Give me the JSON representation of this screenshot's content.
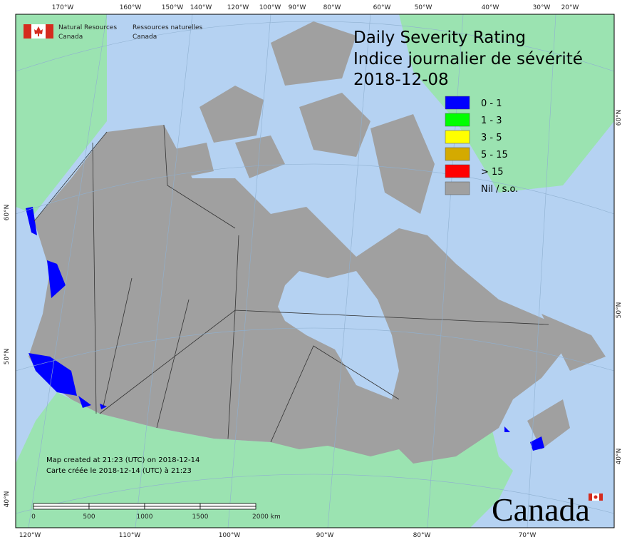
{
  "header": {
    "title": "Daily Severity Rating",
    "subtitle": "Indice journalier de sévérité",
    "date": "2018-12-08"
  },
  "logo": {
    "en1": "Natural Resources",
    "en2": "Canada",
    "fr1": "Ressources naturelles",
    "fr2": "Canada"
  },
  "legend": [
    {
      "label": "0 - 1",
      "color": "#0000ff"
    },
    {
      "label": "1 - 3",
      "color": "#00ff00"
    },
    {
      "label": "3 - 5",
      "color": "#ffff00"
    },
    {
      "label": "5 - 15",
      "color": "#d4aa00"
    },
    {
      "label": "> 15",
      "color": "#ff0000"
    },
    {
      "label": "Nil / s.o.",
      "color": "#a0a0a0"
    }
  ],
  "top_labels": [
    "170°W",
    "160°W",
    "150°W",
    "140°W",
    "120°W",
    "100°W",
    "90°W",
    "80°W",
    "60°W",
    "50°W",
    "40°W",
    "30°W",
    "20°W"
  ],
  "bottom_labels": [
    "120°W",
    "110°W",
    "100°W",
    "90°W",
    "80°W",
    "70°W"
  ],
  "left_labels": [
    "60°N",
    "50°N",
    "40°N"
  ],
  "right_labels": [
    "60°N",
    "50°N",
    "40°N"
  ],
  "footer": {
    "created_en": "Map created at 21:23 (UTC) on 2018-12-14",
    "created_fr": "Carte créée le 2018-12-14 (UTC) à 21:23"
  },
  "scale": [
    "0",
    "500",
    "1000",
    "1500",
    "2000 km"
  ],
  "wordmark": "Canada"
}
